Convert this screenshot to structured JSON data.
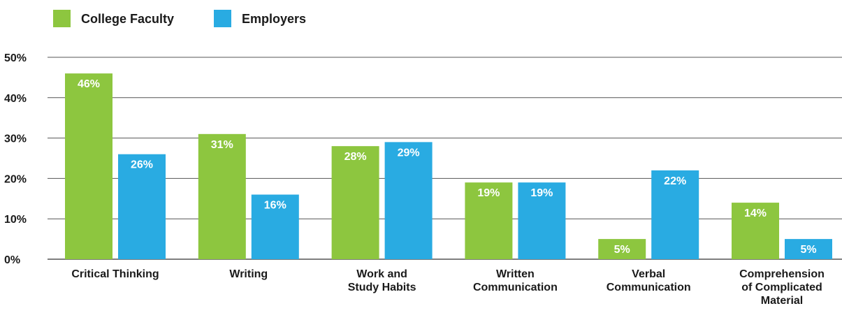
{
  "chart_data": {
    "type": "bar",
    "title": "",
    "xlabel": "",
    "ylabel": "",
    "ylim": [
      0,
      50
    ],
    "grid": true,
    "legend_position": "top-left",
    "y_ticks": [
      {
        "value": 0,
        "label": "0%"
      },
      {
        "value": 10,
        "label": "10%"
      },
      {
        "value": 20,
        "label": "20%"
      },
      {
        "value": 30,
        "label": "30%"
      },
      {
        "value": 40,
        "label": "40%"
      },
      {
        "value": 50,
        "label": "50%"
      }
    ],
    "categories": [
      [
        "Critical Thinking"
      ],
      [
        "Writing"
      ],
      [
        "Work and",
        "Study Habits"
      ],
      [
        "Written",
        "Communication"
      ],
      [
        "Verbal",
        "Communication"
      ],
      [
        "Comprehension",
        "of Complicated",
        "Material"
      ]
    ],
    "series": [
      {
        "name": "College Faculty",
        "color": "#8dc63f",
        "values": [
          46,
          31,
          28,
          19,
          5,
          14
        ],
        "labels": [
          "46%",
          "31%",
          "28%",
          "19%",
          "5%",
          "14%"
        ]
      },
      {
        "name": "Employers",
        "color": "#29abe2",
        "values": [
          26,
          16,
          29,
          19,
          22,
          5
        ],
        "labels": [
          "26%",
          "16%",
          "29%",
          "19%",
          "22%",
          "5%"
        ]
      }
    ],
    "colors": {
      "text": "#1a1a1a",
      "grid": "#555555",
      "label_on_bar": "#ffffff"
    }
  }
}
